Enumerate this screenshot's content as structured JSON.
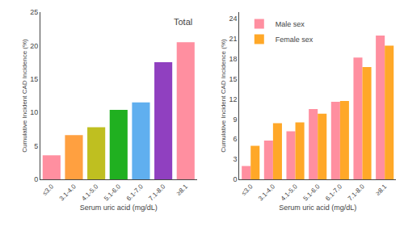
{
  "chart_data": [
    {
      "type": "bar",
      "title": "Total",
      "categories": [
        "≤3.0",
        "3.1-4.0",
        "4.1-5.0",
        "5.1-6.0",
        "6.1-7.0",
        "7.1-8.0",
        "≥8.1"
      ],
      "values": [
        3.6,
        6.6,
        7.8,
        10.4,
        11.5,
        17.5,
        20.5
      ],
      "colors": [
        "#FF8FA0",
        "#FFA040",
        "#BFBF20",
        "#20B020",
        "#60AFEF",
        "#9040C0",
        "#FF8FA0"
      ],
      "xlabel": "Serum uric acid (mg/dL)",
      "ylabel": "Cumulative Incident CAD Incidence (%)",
      "ylim": [
        0,
        25
      ],
      "yticks": [
        0,
        5,
        10,
        15,
        20,
        25
      ],
      "grid": false
    },
    {
      "type": "bar",
      "categories": [
        "≤3.0",
        "3.1-4.0",
        "4.1-5.0",
        "5.1-6.0",
        "6.1-7.0",
        "7.1-8.0",
        "≥8.1"
      ],
      "series": [
        {
          "name": "Male sex",
          "color": "#FF8FA0",
          "values": [
            2.0,
            5.8,
            7.2,
            10.5,
            11.6,
            18.2,
            21.5
          ]
        },
        {
          "name": "Female sex",
          "color": "#FFA828",
          "values": [
            5.0,
            8.4,
            8.5,
            9.8,
            11.7,
            16.8,
            20.0
          ]
        }
      ],
      "xlabel": "Serum uric acid (mg/dL)",
      "ylabel": "Cumulative Incident CAD Incidence (%)",
      "ylim": [
        0,
        25
      ],
      "yticks": [
        0,
        3,
        6,
        9,
        12,
        15,
        18,
        21,
        24
      ],
      "grid": false,
      "legend": "upper left"
    }
  ]
}
